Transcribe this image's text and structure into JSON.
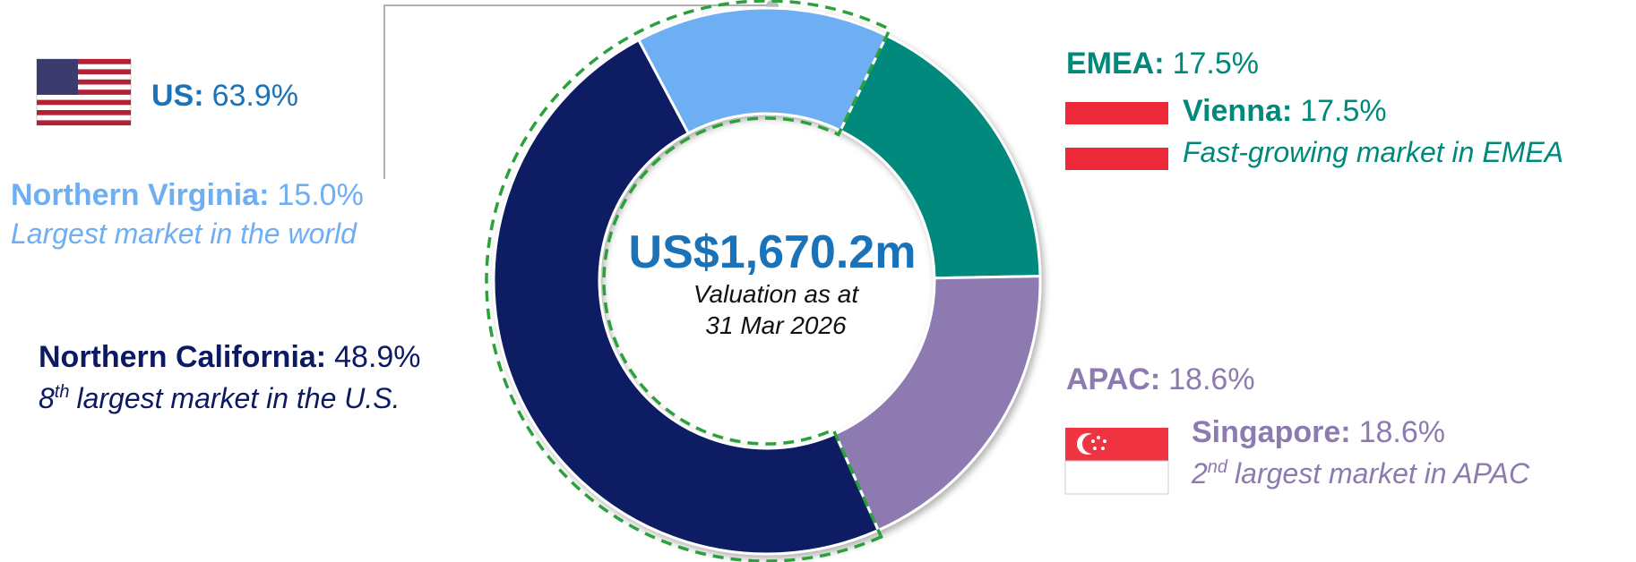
{
  "chart_data": {
    "type": "pie",
    "categories": [
      "Northern Virginia:",
      "Vienna:",
      "Singapore:",
      "Northern California:"
    ],
    "values": [
      15.0,
      17.5,
      18.6,
      48.9
    ],
    "value_labels": [
      "15.0%",
      "17.5%",
      "18.6%",
      "48.9%"
    ],
    "colors": [
      "#6eaef2",
      "#00897b",
      "#8d7ab0",
      "#0b1a63"
    ],
    "descriptions": [
      [
        "Largest market in the world"
      ],
      [
        "Fast-growing market in EMEA"
      ],
      [
        "2",
        "nd",
        "largest market in APAC"
      ],
      [
        "8",
        "th",
        "largest market in the U.S."
      ]
    ],
    "regions": {
      "names": [
        "US:",
        "EMEA:",
        "APAC:"
      ],
      "values": [
        63.9,
        17.5,
        18.6
      ],
      "value_labels": [
        "63.9%",
        "17.5%",
        "18.6%"
      ]
    },
    "center": {
      "value_text": "US$1,670.2m",
      "caption": [
        "Valuation as at",
        "31 Mar 2026"
      ]
    }
  }
}
